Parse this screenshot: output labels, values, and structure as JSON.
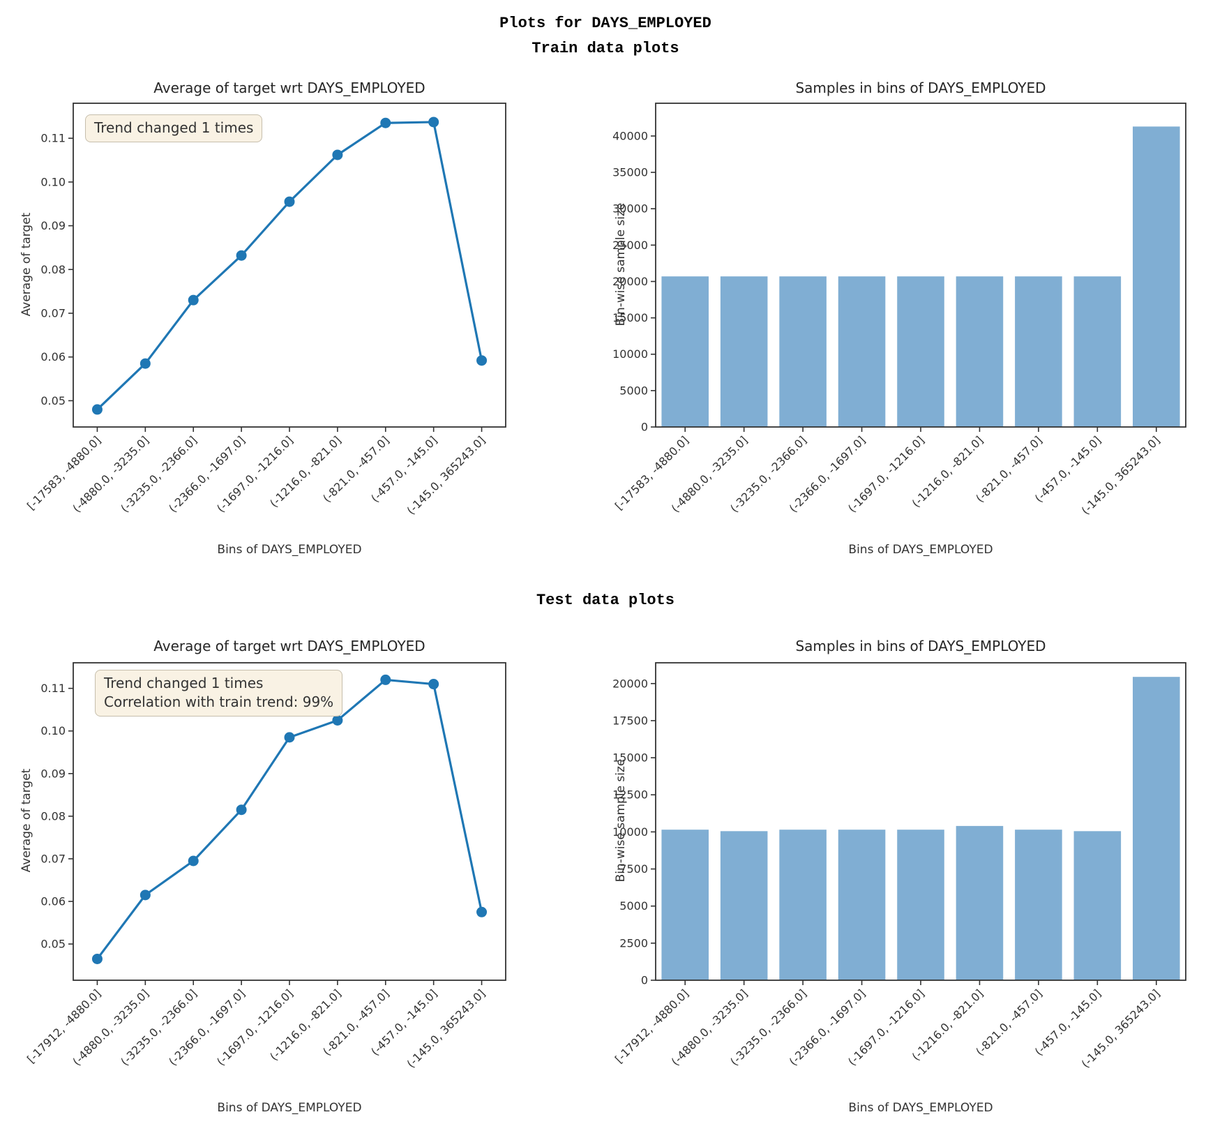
{
  "figure": {
    "suptitle_line1": "Plots for DAYS_EMPLOYED",
    "suptitle_line2": "Train data plots",
    "section2_title": "Test data plots"
  },
  "colors": {
    "line": "#1f77b4",
    "marker": "#1f77b4",
    "bar": "#80aed3",
    "axis": "#333333",
    "annotation_bg": "#f8f1e1",
    "annotation_border": "#c6beac"
  },
  "chart_data": [
    {
      "id": "train-avg-line",
      "type": "line",
      "title": "Average of target wrt DAYS_EMPLOYED",
      "xlabel": "Bins of DAYS_EMPLOYED",
      "ylabel": "Average of target",
      "categories": [
        "[-17583, -4880.0]",
        "(-4880.0, -3235.0]",
        "(-3235.0, -2366.0]",
        "(-2366.0, -1697.0]",
        "(-1697.0, -1216.0]",
        "(-1216.0, -821.0]",
        "(-821.0, -457.0]",
        "(-457.0, -145.0]",
        "(-145.0, 365243.0]"
      ],
      "values": [
        0.048,
        0.0585,
        0.073,
        0.0832,
        0.0955,
        0.1062,
        0.1135,
        0.1137,
        0.0592
      ],
      "yticks": [
        0.05,
        0.06,
        0.07,
        0.08,
        0.09,
        0.1,
        0.11
      ],
      "ytick_labels": [
        "0.05",
        "0.06",
        "0.07",
        "0.08",
        "0.09",
        "0.10",
        "0.11"
      ],
      "ylim": [
        0.044,
        0.118
      ],
      "annotation": [
        "Trend changed 1 times"
      ],
      "legend_position": "none",
      "grid": false
    },
    {
      "id": "train-samples-bar",
      "type": "bar",
      "title": "Samples in bins of DAYS_EMPLOYED",
      "xlabel": "Bins of DAYS_EMPLOYED",
      "ylabel": "Bin-wise sample size",
      "categories": [
        "[-17583, -4880.0]",
        "(-4880.0, -3235.0]",
        "(-3235.0, -2366.0]",
        "(-2366.0, -1697.0]",
        "(-1697.0, -1216.0]",
        "(-1216.0, -821.0]",
        "(-821.0, -457.0]",
        "(-457.0, -145.0]",
        "(-145.0, 365243.0]"
      ],
      "values": [
        20700,
        20700,
        20700,
        20700,
        20700,
        20700,
        20700,
        20700,
        41300
      ],
      "yticks": [
        0,
        5000,
        10000,
        15000,
        20000,
        25000,
        30000,
        35000,
        40000
      ],
      "ytick_labels": [
        "0",
        "5000",
        "10000",
        "15000",
        "20000",
        "25000",
        "30000",
        "35000",
        "40000"
      ],
      "ylim": [
        0,
        44500
      ],
      "grid": false
    },
    {
      "id": "test-avg-line",
      "type": "line",
      "title": "Average of target wrt DAYS_EMPLOYED",
      "xlabel": "Bins of DAYS_EMPLOYED",
      "ylabel": "Average of target",
      "categories": [
        "[-17912, -4880.0]",
        "(-4880.0, -3235.0]",
        "(-3235.0, -2366.0]",
        "(-2366.0, -1697.0]",
        "(-1697.0, -1216.0]",
        "(-1216.0, -821.0]",
        "(-821.0, -457.0]",
        "(-457.0, -145.0]",
        "(-145.0, 365243.0]"
      ],
      "values": [
        0.0465,
        0.0615,
        0.0695,
        0.0815,
        0.0985,
        0.1025,
        0.112,
        0.111,
        0.0575
      ],
      "yticks": [
        0.05,
        0.06,
        0.07,
        0.08,
        0.09,
        0.1,
        0.11
      ],
      "ytick_labels": [
        "0.05",
        "0.06",
        "0.07",
        "0.08",
        "0.09",
        "0.10",
        "0.11"
      ],
      "ylim": [
        0.0415,
        0.116
      ],
      "annotation": [
        "Trend changed 1 times",
        "Correlation with train trend: 99%"
      ],
      "legend_position": "none",
      "grid": false
    },
    {
      "id": "test-samples-bar",
      "type": "bar",
      "title": "Samples in bins of DAYS_EMPLOYED",
      "xlabel": "Bins of DAYS_EMPLOYED",
      "ylabel": "Bin-wise sample size",
      "categories": [
        "[-17912, -4880.0]",
        "(-4880.0, -3235.0]",
        "(-3235.0, -2366.0]",
        "(-2366.0, -1697.0]",
        "(-1697.0, -1216.0]",
        "(-1216.0, -821.0]",
        "(-821.0, -457.0]",
        "(-457.0, -145.0]",
        "(-145.0, 365243.0]"
      ],
      "values": [
        10150,
        10050,
        10150,
        10150,
        10150,
        10400,
        10150,
        10050,
        20450
      ],
      "yticks": [
        0,
        2500,
        5000,
        7500,
        10000,
        12500,
        15000,
        17500,
        20000
      ],
      "ytick_labels": [
        "0",
        "2500",
        "5000",
        "7500",
        "10000",
        "12500",
        "15000",
        "17500",
        "20000"
      ],
      "ylim": [
        0,
        21400
      ],
      "grid": false
    }
  ]
}
